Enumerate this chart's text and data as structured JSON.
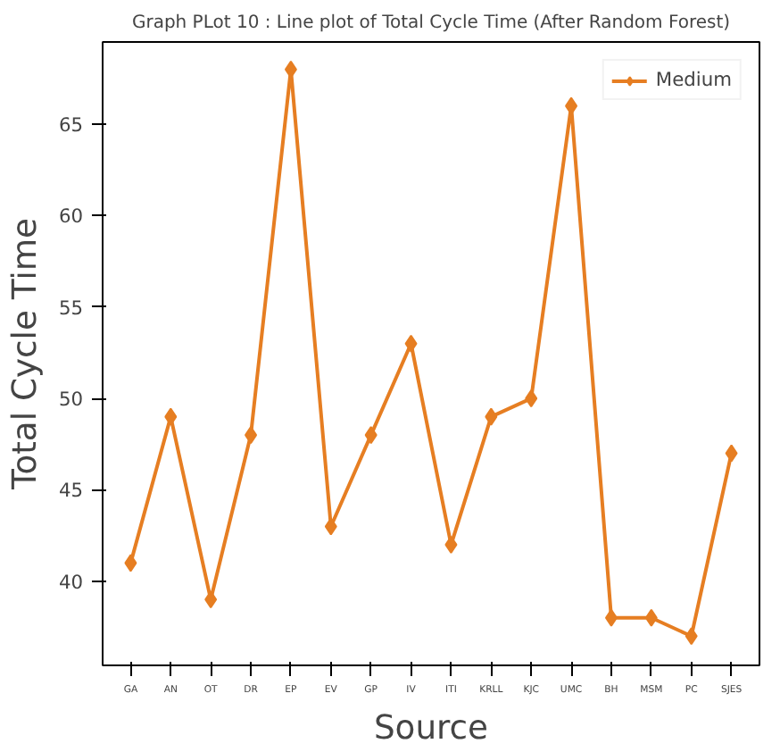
{
  "chart_data": {
    "type": "line",
    "title": "Graph PLot 10 : Line plot of Total Cycle Time (After Random Forest)",
    "xlabel": "Source",
    "ylabel": "Total Cycle Time",
    "categories": [
      "GA",
      "AN",
      "OT",
      "DR",
      "EP",
      "EV",
      "GP",
      "IV",
      "ITI",
      "KRLL",
      "KJC",
      "UMC",
      "BH",
      "MSM",
      "PC",
      "SJES"
    ],
    "series": [
      {
        "name": "Medium",
        "color": "#e67e22",
        "values": [
          41,
          49,
          39,
          48,
          68,
          43,
          48,
          53,
          42,
          49,
          50,
          66,
          38,
          38,
          37,
          47
        ]
      }
    ],
    "ylim": [
      35.4,
      69.5
    ],
    "yticks": [
      40,
      45,
      50,
      55,
      60,
      65
    ],
    "grid": false,
    "legend": "top right",
    "marker": "diamond",
    "line_style": "solid"
  }
}
